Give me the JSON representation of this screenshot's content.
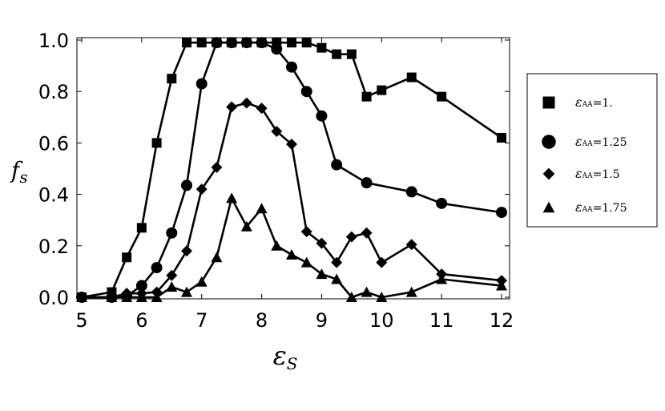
{
  "chart_data": {
    "type": "line",
    "xlabel_main": "ε",
    "xlabel_sub": "S",
    "ylabel_main": "f",
    "ylabel_sub": "s",
    "xlim": [
      5,
      12
    ],
    "ylim": [
      0,
      1
    ],
    "x_ticks": [
      "5",
      "6",
      "7",
      "8",
      "9",
      "10",
      "11",
      "12"
    ],
    "y_ticks": [
      "0.0",
      "0.2",
      "0.4",
      "0.6",
      "0.8",
      "1.0"
    ],
    "grid": false,
    "legend_position": "right",
    "series": [
      {
        "name": "εAA=1.",
        "label_main": "ε",
        "label_sub": "AA",
        "label_value": "=1.",
        "marker": "square",
        "x": [
          5,
          5.5,
          5.75,
          6,
          6.25,
          6.5,
          6.75,
          7,
          7.25,
          7.5,
          7.75,
          8,
          8.25,
          8.5,
          8.75,
          9,
          9.25,
          9.5,
          9.75,
          10,
          10.5,
          11,
          12
        ],
        "y": [
          0.0,
          0.02,
          0.155,
          0.27,
          0.6,
          0.85,
          0.99,
          0.99,
          0.99,
          0.99,
          0.99,
          0.99,
          0.99,
          0.99,
          0.99,
          0.97,
          0.945,
          0.945,
          0.78,
          0.805,
          0.855,
          0.78,
          0.62
        ]
      },
      {
        "name": "εAA=1.25",
        "label_main": "ε",
        "label_sub": "AA",
        "label_value": "=1.25",
        "marker": "circle",
        "x": [
          5,
          5.5,
          5.75,
          6,
          6.25,
          6.5,
          6.75,
          7,
          7.25,
          7.5,
          7.75,
          8,
          8.25,
          8.5,
          8.75,
          9,
          9.25,
          9.75,
          10.5,
          11,
          12
        ],
        "y": [
          0.0,
          0.0,
          0.005,
          0.045,
          0.115,
          0.25,
          0.435,
          0.83,
          0.99,
          0.99,
          0.99,
          0.99,
          0.965,
          0.895,
          0.8,
          0.705,
          0.515,
          0.445,
          0.41,
          0.365,
          0.33
        ]
      },
      {
        "name": "εAA=1.5",
        "label_main": "ε",
        "label_sub": "AA",
        "label_value": "=1.5",
        "marker": "diamond",
        "x": [
          5,
          5.5,
          5.75,
          6,
          6.25,
          6.5,
          6.75,
          7,
          7.25,
          7.5,
          7.75,
          8,
          8.25,
          8.5,
          8.75,
          9,
          9.25,
          9.5,
          9.75,
          10,
          10.5,
          11,
          12
        ],
        "y": [
          0.0,
          0.0,
          0.015,
          0.015,
          0.02,
          0.085,
          0.18,
          0.42,
          0.505,
          0.74,
          0.755,
          0.735,
          0.645,
          0.595,
          0.255,
          0.21,
          0.135,
          0.235,
          0.25,
          0.135,
          0.205,
          0.09,
          0.065
        ]
      },
      {
        "name": "εAA=1.75",
        "label_main": "ε",
        "label_sub": "AA",
        "label_value": "=1.75",
        "marker": "triangle",
        "x": [
          5,
          5.5,
          5.75,
          6,
          6.25,
          6.5,
          6.75,
          7,
          7.25,
          7.5,
          7.75,
          8,
          8.25,
          8.5,
          8.75,
          9,
          9.25,
          9.5,
          9.75,
          10,
          10.5,
          11,
          12
        ],
        "y": [
          0.0,
          0.0,
          0.0,
          0.0,
          0.0,
          0.04,
          0.02,
          0.06,
          0.155,
          0.385,
          0.275,
          0.345,
          0.2,
          0.165,
          0.135,
          0.09,
          0.07,
          0.0,
          0.02,
          0.0,
          0.02,
          0.07,
          0.045
        ]
      }
    ]
  }
}
